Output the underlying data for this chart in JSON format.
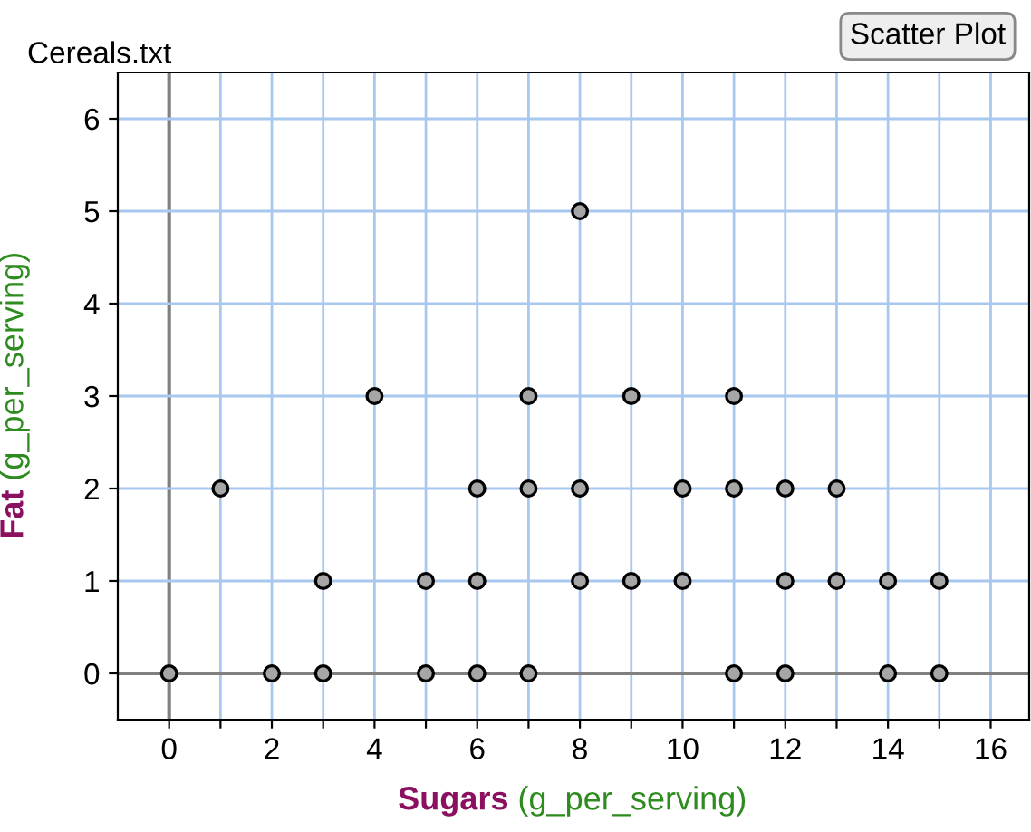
{
  "chart_data": {
    "type": "scatter",
    "title": "Cereals.txt",
    "xlabel": "Sugars (g_per_serving)",
    "ylabel": "Fat (g_per_serving)",
    "annotations": [
      "Scatter Plot"
    ],
    "x": [
      0,
      2,
      3,
      5,
      6,
      7,
      11,
      12,
      14,
      15,
      3,
      5,
      6,
      8,
      9,
      10,
      12,
      13,
      14,
      15,
      1,
      6,
      7,
      8,
      10,
      11,
      12,
      13,
      4,
      7,
      9,
      11,
      8
    ],
    "values": [
      0,
      0,
      0,
      0,
      0,
      0,
      0,
      0,
      0,
      0,
      1,
      1,
      1,
      1,
      1,
      1,
      1,
      1,
      1,
      1,
      2,
      2,
      2,
      2,
      2,
      2,
      2,
      2,
      3,
      3,
      3,
      3,
      5
    ],
    "color": "#a6a6a6",
    "marker": "circle",
    "grid": true,
    "xlim": [
      -1,
      16.75
    ],
    "ylim": [
      -0.5,
      6.5
    ],
    "xticks": [
      0,
      {
        "value": 1,
        "label": null
      },
      2,
      {
        "value": 3,
        "label": null
      },
      4,
      {
        "value": 5,
        "label": null
      },
      6,
      {
        "value": 7,
        "label": null
      },
      8,
      {
        "value": 9,
        "label": null
      },
      10,
      {
        "value": 11,
        "label": null
      },
      12,
      {
        "value": 13,
        "label": null
      },
      14,
      {
        "value": 15,
        "label": null
      },
      16
    ],
    "yticks": [
      0,
      1,
      2,
      3,
      4,
      5,
      6
    ]
  }
}
